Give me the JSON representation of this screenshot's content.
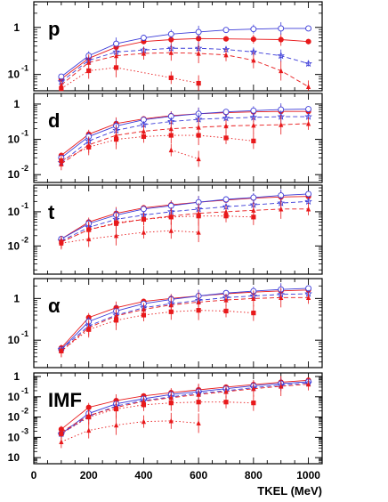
{
  "chart_data": {
    "type": "line",
    "xlabel": "TKEL (MeV)",
    "ylabel": "",
    "x_ticks": [
      "0",
      "200",
      "400",
      "600",
      "800",
      "1000"
    ],
    "xlim": [
      0,
      1050
    ],
    "y_scale": "log",
    "grid": false,
    "legend": "none",
    "colors": {
      "red": "#e8191b",
      "blue": "#3b3bd8"
    },
    "panels": [
      {
        "label": "p",
        "ylim": [
          0.045,
          3.5
        ],
        "y_ticks": [
          {
            "value": 1,
            "label": "1"
          },
          {
            "value": 0.1,
            "label": "10",
            "sup": "-1"
          }
        ],
        "series": [
          {
            "color": "red",
            "marker": "circle",
            "dash": "solid",
            "x": [
              100,
              200,
              300,
              400,
              500,
              600,
              700,
              800,
              900,
              1000
            ],
            "y": [
              0.08,
              0.22,
              0.38,
              0.5,
              0.55,
              0.58,
              0.57,
              0.56,
              0.55,
              0.5
            ]
          },
          {
            "color": "blue",
            "marker": "open-circle",
            "dash": "solid",
            "x": [
              100,
              200,
              300,
              400,
              500,
              600,
              700,
              800,
              900,
              1000
            ],
            "y": [
              0.09,
              0.25,
              0.45,
              0.6,
              0.72,
              0.8,
              0.88,
              0.92,
              0.95,
              0.95
            ]
          },
          {
            "color": "blue",
            "marker": "open-star",
            "dash": "dashed",
            "x": [
              100,
              200,
              300,
              400,
              500,
              600,
              700,
              800,
              900,
              1000
            ],
            "y": [
              0.07,
              0.2,
              0.3,
              0.33,
              0.36,
              0.36,
              0.34,
              0.3,
              0.25,
              0.17
            ]
          },
          {
            "color": "red",
            "marker": "square",
            "dash": "dotted",
            "x": [
              100,
              200,
              300,
              500,
              600
            ],
            "y": [
              0.05,
              0.12,
              0.14,
              0.085,
              0.065
            ]
          },
          {
            "color": "red",
            "marker": "triangle",
            "dash": "dashed",
            "x": [
              100,
              200,
              300,
              400,
              500,
              600,
              700,
              800,
              900,
              1000
            ],
            "y": [
              0.06,
              0.18,
              0.25,
              0.28,
              0.29,
              0.28,
              0.26,
              0.2,
              0.12,
              0.055
            ]
          }
        ]
      },
      {
        "label": "d",
        "ylim": [
          0.006,
          2
        ],
        "y_ticks": [
          {
            "value": 1,
            "label": "1"
          },
          {
            "value": 0.1,
            "label": "10",
            "sup": "-1"
          },
          {
            "value": 0.01,
            "label": "10",
            "sup": "-2"
          }
        ],
        "series": [
          {
            "color": "red",
            "marker": "circle",
            "dash": "solid",
            "x": [
              100,
              200,
              300,
              400,
              500,
              600,
              700,
              800,
              900,
              1000
            ],
            "y": [
              0.035,
              0.14,
              0.28,
              0.38,
              0.47,
              0.53,
              0.57,
              0.6,
              0.62,
              0.62
            ]
          },
          {
            "color": "blue",
            "marker": "open-circle",
            "dash": "solid",
            "x": [
              100,
              200,
              300,
              400,
              500,
              600,
              700,
              800,
              900,
              1000
            ],
            "y": [
              0.03,
              0.12,
              0.24,
              0.36,
              0.45,
              0.53,
              0.6,
              0.65,
              0.7,
              0.72
            ]
          },
          {
            "color": "blue",
            "marker": "open-star",
            "dash": "dashed",
            "x": [
              100,
              200,
              300,
              400,
              500,
              600,
              700,
              800,
              900,
              1000
            ],
            "y": [
              0.022,
              0.09,
              0.18,
              0.26,
              0.32,
              0.37,
              0.4,
              0.42,
              0.44,
              0.44
            ]
          },
          {
            "color": "red",
            "marker": "square",
            "dash": "dotted",
            "x": [
              100,
              200,
              300,
              400,
              500,
              600,
              700,
              800
            ],
            "y": [
              0.025,
              0.06,
              0.1,
              0.12,
              0.13,
              0.13,
              0.11,
              0.09
            ]
          },
          {
            "color": "red",
            "marker": "triangle",
            "dash": "dashed",
            "x": [
              100,
              200,
              300,
              400,
              500,
              600,
              700,
              800,
              900,
              1000
            ],
            "y": [
              0.02,
              0.07,
              0.13,
              0.17,
              0.2,
              0.22,
              0.24,
              0.25,
              0.26,
              0.28
            ]
          },
          {
            "color": "red",
            "marker": "triangle",
            "dash": "dotted",
            "x": [
              500,
              600
            ],
            "y": [
              0.05,
              0.028
            ]
          }
        ]
      },
      {
        "label": "t",
        "ylim": [
          0.0015,
          0.6
        ],
        "y_ticks": [
          {
            "value": 0.1,
            "label": "10",
            "sup": "-1"
          },
          {
            "value": 0.01,
            "label": "10",
            "sup": "-2"
          }
        ],
        "series": [
          {
            "color": "red",
            "marker": "circle",
            "dash": "solid",
            "x": [
              100,
              200,
              300,
              400,
              500,
              600,
              700,
              800,
              900,
              1000
            ],
            "y": [
              0.016,
              0.05,
              0.09,
              0.13,
              0.16,
              0.19,
              0.22,
              0.25,
              0.27,
              0.28
            ]
          },
          {
            "color": "blue",
            "marker": "open-circle",
            "dash": "solid",
            "x": [
              100,
              200,
              300,
              400,
              500,
              600,
              700,
              800,
              900,
              1000
            ],
            "y": [
              0.016,
              0.045,
              0.08,
              0.12,
              0.15,
              0.19,
              0.23,
              0.26,
              0.3,
              0.33
            ]
          },
          {
            "color": "blue",
            "marker": "open-star",
            "dash": "dashed",
            "x": [
              100,
              200,
              300,
              400,
              500,
              600,
              700,
              800,
              900,
              1000
            ],
            "y": [
              0.014,
              0.035,
              0.06,
              0.08,
              0.1,
              0.12,
              0.14,
              0.16,
              0.18,
              0.2
            ]
          },
          {
            "color": "red",
            "marker": "square",
            "dash": "dotted",
            "x": [
              100,
              200,
              300,
              400,
              500,
              600,
              700,
              800
            ],
            "y": [
              0.013,
              0.03,
              0.048,
              0.06,
              0.07,
              0.075,
              0.075,
              0.07
            ]
          },
          {
            "color": "red",
            "marker": "triangle",
            "dash": "dashed",
            "x": [
              100,
              200,
              300,
              400,
              500,
              600,
              700,
              800,
              900,
              1000
            ],
            "y": [
              0.013,
              0.03,
              0.045,
              0.06,
              0.075,
              0.09,
              0.1,
              0.11,
              0.12,
              0.12
            ]
          },
          {
            "color": "red",
            "marker": "triangle",
            "dash": "dotted",
            "x": [
              100,
              200,
              300,
              400,
              500,
              600
            ],
            "y": [
              0.012,
              0.016,
              0.02,
              0.025,
              0.028,
              0.025
            ]
          }
        ]
      },
      {
        "label": "α",
        "ylim": [
          0.022,
          3
        ],
        "y_ticks": [
          {
            "value": 1,
            "label": "1"
          },
          {
            "value": 0.1,
            "label": "10",
            "sup": "-1"
          }
        ],
        "series": [
          {
            "color": "red",
            "marker": "circle",
            "dash": "solid",
            "x": [
              100,
              200,
              300,
              400,
              500,
              600,
              700,
              800,
              900,
              1000
            ],
            "y": [
              0.065,
              0.35,
              0.6,
              0.85,
              1.0,
              1.15,
              1.3,
              1.42,
              1.52,
              1.6
            ]
          },
          {
            "color": "blue",
            "marker": "open-circle",
            "dash": "solid",
            "x": [
              100,
              200,
              300,
              400,
              500,
              600,
              700,
              800,
              900,
              1000
            ],
            "y": [
              0.06,
              0.28,
              0.5,
              0.75,
              0.95,
              1.15,
              1.35,
              1.5,
              1.65,
              1.75
            ]
          },
          {
            "color": "blue",
            "marker": "open-star",
            "dash": "dashed",
            "x": [
              100,
              200,
              300,
              400,
              500,
              600,
              700,
              800,
              900,
              1000
            ],
            "y": [
              0.06,
              0.22,
              0.4,
              0.6,
              0.75,
              0.9,
              1.05,
              1.15,
              1.25,
              1.3
            ]
          },
          {
            "color": "red",
            "marker": "square",
            "dash": "dotted",
            "x": [
              100,
              200,
              300,
              400,
              500,
              600,
              700,
              800
            ],
            "y": [
              0.055,
              0.18,
              0.3,
              0.4,
              0.48,
              0.52,
              0.5,
              0.45
            ]
          },
          {
            "color": "red",
            "marker": "triangle",
            "dash": "dashed",
            "x": [
              100,
              200,
              300,
              400,
              500,
              600,
              700,
              800,
              900,
              1000
            ],
            "y": [
              0.055,
              0.2,
              0.38,
              0.55,
              0.7,
              0.82,
              0.92,
              1.0,
              1.05,
              1.05
            ]
          }
        ]
      },
      {
        "label": "IMF",
        "ylim": [
          5e-05,
          1.5
        ],
        "y_ticks": [
          {
            "value": 1,
            "label": "1"
          },
          {
            "value": 0.1,
            "label": "10",
            "sup": "-1"
          },
          {
            "value": 0.01,
            "label": "10",
            "sup": "-2"
          },
          {
            "value": 0.001,
            "label": "10",
            "sup": "-3"
          },
          {
            "value": 0.0001,
            "label": "10",
            "sup": ""
          }
        ],
        "series": [
          {
            "color": "red",
            "marker": "circle",
            "dash": "solid",
            "x": [
              100,
              200,
              300,
              400,
              500,
              600,
              700,
              800,
              900,
              1000
            ],
            "y": [
              0.0025,
              0.03,
              0.065,
              0.11,
              0.16,
              0.22,
              0.3,
              0.4,
              0.52,
              0.65
            ]
          },
          {
            "color": "blue",
            "marker": "open-circle",
            "dash": "solid",
            "x": [
              100,
              200,
              300,
              400,
              500,
              600,
              700,
              800,
              900,
              1000
            ],
            "y": [
              0.0015,
              0.015,
              0.045,
              0.08,
              0.13,
              0.18,
              0.25,
              0.35,
              0.45,
              0.55
            ]
          },
          {
            "color": "blue",
            "marker": "open-star",
            "dash": "dashed",
            "x": [
              100,
              200,
              300,
              400,
              500,
              600,
              700,
              800,
              900,
              1000
            ],
            "y": [
              0.0015,
              0.011,
              0.035,
              0.065,
              0.1,
              0.15,
              0.2,
              0.28,
              0.38,
              0.48
            ]
          },
          {
            "color": "red",
            "marker": "square",
            "dash": "dotted",
            "x": [
              100,
              200,
              300,
              400,
              500,
              600,
              700,
              800
            ],
            "y": [
              0.0015,
              0.01,
              0.025,
              0.04,
              0.05,
              0.055,
              0.055,
              0.05
            ]
          },
          {
            "color": "red",
            "marker": "triangle",
            "dash": "dotted",
            "x": [
              100,
              200,
              300,
              400,
              500,
              600
            ],
            "y": [
              0.0006,
              0.0022,
              0.004,
              0.006,
              0.0065,
              0.005
            ]
          },
          {
            "color": "red",
            "marker": "triangle",
            "dash": "dashed",
            "x": [
              100,
              200,
              300,
              400,
              500,
              600,
              700,
              800,
              900,
              1000
            ],
            "y": [
              0.0018,
              0.012,
              0.03,
              0.06,
              0.09,
              0.13,
              0.18,
              0.25,
              0.33,
              0.42
            ]
          }
        ]
      }
    ]
  }
}
